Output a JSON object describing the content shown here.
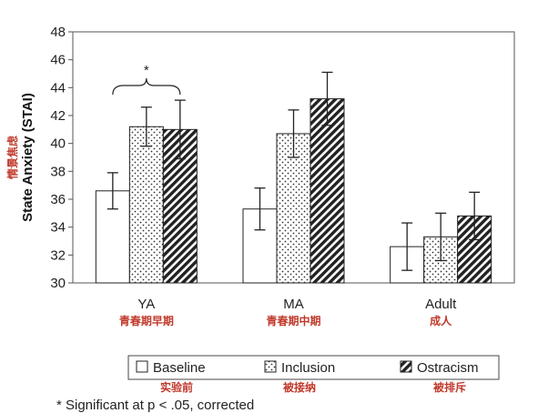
{
  "chart_data": {
    "type": "bar",
    "categories": [
      "YA",
      "MA",
      "Adult"
    ],
    "categories_cn": [
      "青春期早期",
      "青春期中期",
      "成人"
    ],
    "ylabel": "State Anxiety (STAI)",
    "ylabel_cn": "情景焦虑",
    "ylim": [
      30,
      48
    ],
    "yticks": [
      30,
      32,
      34,
      36,
      38,
      40,
      42,
      44,
      46,
      48
    ],
    "series": [
      {
        "name": "Baseline",
        "name_cn": "实验前",
        "pattern": "solid-white",
        "values": [
          36.6,
          35.3,
          32.6
        ],
        "errors": [
          1.3,
          1.5,
          1.7
        ]
      },
      {
        "name": "Inclusion",
        "name_cn": "被接纳",
        "pattern": "dots",
        "values": [
          41.2,
          40.7,
          33.3
        ],
        "errors": [
          1.4,
          1.7,
          1.7
        ]
      },
      {
        "name": "Ostracism",
        "name_cn": "被排斥",
        "pattern": "hatch",
        "values": [
          41.0,
          43.2,
          34.8
        ],
        "errors": [
          2.1,
          1.9,
          1.7
        ]
      }
    ],
    "annotation": {
      "symbol": "*",
      "category": "YA",
      "between": [
        "Baseline",
        "Ostracism"
      ]
    },
    "legend_position": "bottom",
    "note": "* Significant at p < .05, corrected"
  }
}
